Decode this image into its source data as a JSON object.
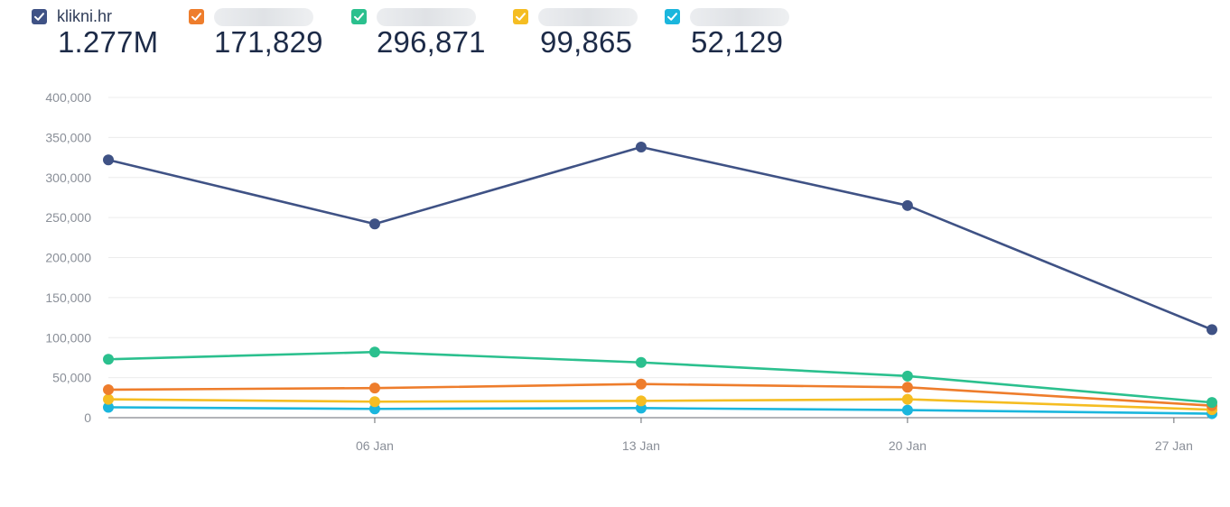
{
  "legend": [
    {
      "label": "klikni.hr",
      "value": "1.277M",
      "color": "#3f5285",
      "blurred": false
    },
    {
      "label": "",
      "value": "171,829",
      "color": "#ee7d2c",
      "blurred": true
    },
    {
      "label": "",
      "value": "296,871",
      "color": "#2bc08e",
      "blurred": true
    },
    {
      "label": "",
      "value": "99,865",
      "color": "#f5bd22",
      "blurred": true
    },
    {
      "label": "",
      "value": "52,129",
      "color": "#1bb6dd",
      "blurred": true
    }
  ],
  "chart_data": {
    "type": "line",
    "title": "",
    "xlabel": "",
    "ylabel": "",
    "ylim": [
      0,
      400000
    ],
    "yticks": [
      0,
      50000,
      100000,
      150000,
      200000,
      250000,
      300000,
      350000,
      400000
    ],
    "ytick_labels": [
      "0",
      "50,000",
      "100,000",
      "150,000",
      "200,000",
      "250,000",
      "300,000",
      "350,000",
      "400,000"
    ],
    "xlim": [
      "2019-12-30",
      "2020-01-28"
    ],
    "xticks": [
      "2020-01-06",
      "2020-01-13",
      "2020-01-20",
      "2020-01-27"
    ],
    "xtick_labels": [
      "06 Jan",
      "13 Jan",
      "20 Jan",
      "27 Jan"
    ],
    "x": [
      "2019-12-30",
      "2020-01-06",
      "2020-01-13",
      "2020-01-20",
      "2020-01-28"
    ],
    "grid": true,
    "series": [
      {
        "name": "klikni.hr",
        "color": "#3f5285",
        "values": [
          322000,
          242000,
          338000,
          265000,
          110000
        ]
      },
      {
        "color": "#2bc08e",
        "values": [
          73000,
          82000,
          69000,
          52000,
          19000
        ]
      },
      {
        "color": "#ee7d2c",
        "values": [
          35000,
          37000,
          42000,
          38000,
          15000
        ]
      },
      {
        "color": "#f5bd22",
        "values": [
          23000,
          20000,
          21000,
          23000,
          10000
        ]
      },
      {
        "color": "#1bb6dd",
        "values": [
          13000,
          11000,
          12000,
          9500,
          5000
        ]
      }
    ]
  }
}
